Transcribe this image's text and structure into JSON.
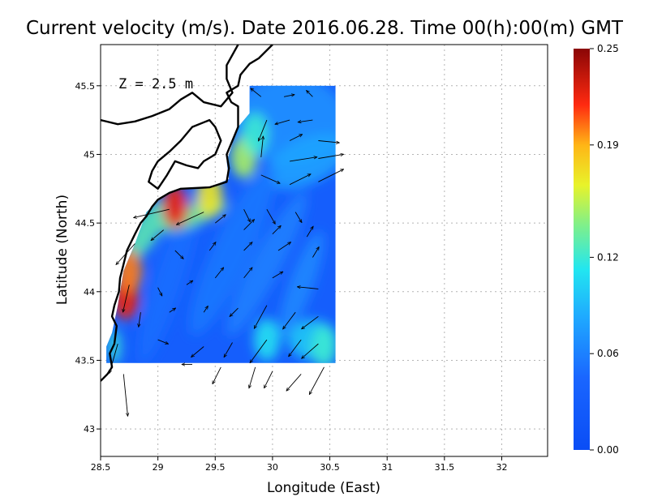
{
  "chart_data": {
    "type": "heatmap",
    "title": "Current velocity (m/s). Date 2016.06.28. Time 00(h):00(m) GMT",
    "xlabel": "Longitude (East)",
    "ylabel": "Latitude (North)",
    "annotation": "Z = 2.5 m",
    "xlim": [
      28.5,
      32.4
    ],
    "ylim": [
      42.8,
      45.8
    ],
    "x_ticks": [
      28.5,
      29,
      29.5,
      30,
      30.5,
      31,
      31.5,
      32
    ],
    "x_tick_labels": [
      "28.5",
      "29",
      "29.5",
      "30",
      "30.5",
      "31",
      "31.5",
      "32"
    ],
    "y_ticks": [
      43,
      43.5,
      44,
      44.5,
      45,
      45.5
    ],
    "y_tick_labels": [
      "43",
      "43.5",
      "44",
      "44.5",
      "45",
      "45.5"
    ],
    "grid": true,
    "colorbar": {
      "min": 0.0,
      "max": 0.25,
      "ticks": [
        0.0,
        0.06,
        0.12,
        0.19,
        0.25
      ],
      "tick_labels": [
        "0.00",
        "0.06",
        "0.12",
        "0.19",
        "0.25"
      ],
      "colormap": "jet"
    },
    "field_extent": {
      "lon": [
        28.55,
        30.55
      ],
      "lat": [
        43.48,
        45.5
      ]
    },
    "velocity_hotspots": [
      {
        "lon": 28.72,
        "lat": 43.95,
        "speed": 0.22
      },
      {
        "lon": 28.75,
        "lat": 44.15,
        "speed": 0.2
      },
      {
        "lon": 29.15,
        "lat": 44.62,
        "speed": 0.22
      },
      {
        "lon": 29.45,
        "lat": 44.7,
        "speed": 0.17
      },
      {
        "lon": 29.75,
        "lat": 44.98,
        "speed": 0.15
      },
      {
        "lon": 29.85,
        "lat": 45.15,
        "speed": 0.12
      },
      {
        "lon": 30.45,
        "lat": 43.6,
        "speed": 0.12
      },
      {
        "lon": 29.95,
        "lat": 43.65,
        "speed": 0.11
      }
    ],
    "vectors": [
      {
        "lon": 29.9,
        "lat": 45.42,
        "u": -0.05,
        "v": 0.04
      },
      {
        "lon": 30.1,
        "lat": 45.42,
        "u": 0.05,
        "v": 0.01
      },
      {
        "lon": 30.35,
        "lat": 45.42,
        "u": -0.03,
        "v": 0.03
      },
      {
        "lon": 29.95,
        "lat": 45.25,
        "u": -0.04,
        "v": -0.1
      },
      {
        "lon": 30.15,
        "lat": 45.25,
        "u": -0.07,
        "v": -0.02
      },
      {
        "lon": 30.35,
        "lat": 45.25,
        "u": -0.07,
        "v": -0.01
      },
      {
        "lon": 30.15,
        "lat": 45.1,
        "u": 0.06,
        "v": 0.03
      },
      {
        "lon": 30.4,
        "lat": 45.1,
        "u": 0.1,
        "v": -0.01
      },
      {
        "lon": 29.9,
        "lat": 44.98,
        "u": 0.01,
        "v": 0.1
      },
      {
        "lon": 30.15,
        "lat": 44.95,
        "u": 0.13,
        "v": 0.02
      },
      {
        "lon": 30.4,
        "lat": 44.97,
        "u": 0.12,
        "v": 0.02
      },
      {
        "lon": 29.9,
        "lat": 44.85,
        "u": 0.09,
        "v": -0.04
      },
      {
        "lon": 30.15,
        "lat": 44.78,
        "u": 0.1,
        "v": 0.05
      },
      {
        "lon": 30.4,
        "lat": 44.8,
        "u": 0.12,
        "v": 0.06
      },
      {
        "lon": 29.1,
        "lat": 44.6,
        "u": -0.17,
        "v": -0.04
      },
      {
        "lon": 29.4,
        "lat": 44.58,
        "u": -0.13,
        "v": -0.06
      },
      {
        "lon": 29.75,
        "lat": 44.6,
        "u": 0.03,
        "v": -0.06
      },
      {
        "lon": 29.95,
        "lat": 44.6,
        "u": 0.04,
        "v": -0.07
      },
      {
        "lon": 30.2,
        "lat": 44.58,
        "u": 0.03,
        "v": -0.05
      },
      {
        "lon": 28.8,
        "lat": 44.35,
        "u": -0.09,
        "v": -0.1
      },
      {
        "lon": 29.05,
        "lat": 44.45,
        "u": -0.06,
        "v": -0.05
      },
      {
        "lon": 29.5,
        "lat": 44.5,
        "u": 0.05,
        "v": 0.04
      },
      {
        "lon": 29.75,
        "lat": 44.45,
        "u": 0.05,
        "v": 0.05
      },
      {
        "lon": 30.0,
        "lat": 44.42,
        "u": 0.04,
        "v": 0.04
      },
      {
        "lon": 30.3,
        "lat": 44.4,
        "u": 0.03,
        "v": 0.05
      },
      {
        "lon": 29.15,
        "lat": 44.3,
        "u": 0.04,
        "v": -0.04
      },
      {
        "lon": 29.45,
        "lat": 44.3,
        "u": 0.03,
        "v": 0.04
      },
      {
        "lon": 29.75,
        "lat": 44.3,
        "u": 0.04,
        "v": 0.04
      },
      {
        "lon": 30.05,
        "lat": 44.3,
        "u": 0.06,
        "v": 0.04
      },
      {
        "lon": 30.35,
        "lat": 44.25,
        "u": 0.03,
        "v": 0.05
      },
      {
        "lon": 28.75,
        "lat": 44.05,
        "u": -0.03,
        "v": -0.13
      },
      {
        "lon": 29.0,
        "lat": 44.03,
        "u": 0.02,
        "v": -0.04
      },
      {
        "lon": 29.25,
        "lat": 44.05,
        "u": 0.03,
        "v": 0.02
      },
      {
        "lon": 29.5,
        "lat": 44.1,
        "u": 0.04,
        "v": 0.05
      },
      {
        "lon": 29.75,
        "lat": 44.1,
        "u": 0.04,
        "v": 0.05
      },
      {
        "lon": 30.0,
        "lat": 44.1,
        "u": 0.05,
        "v": 0.03
      },
      {
        "lon": 30.4,
        "lat": 44.02,
        "u": -0.1,
        "v": 0.01
      },
      {
        "lon": 28.85,
        "lat": 43.85,
        "u": -0.01,
        "v": -0.07
      },
      {
        "lon": 29.1,
        "lat": 43.85,
        "u": 0.03,
        "v": 0.02
      },
      {
        "lon": 29.4,
        "lat": 43.85,
        "u": 0.02,
        "v": 0.03
      },
      {
        "lon": 29.7,
        "lat": 43.88,
        "u": -0.04,
        "v": -0.04
      },
      {
        "lon": 29.95,
        "lat": 43.9,
        "u": -0.06,
        "v": -0.11
      },
      {
        "lon": 30.2,
        "lat": 43.85,
        "u": -0.06,
        "v": -0.08
      },
      {
        "lon": 30.4,
        "lat": 43.82,
        "u": -0.08,
        "v": -0.06
      },
      {
        "lon": 28.65,
        "lat": 43.62,
        "u": -0.04,
        "v": -0.14
      },
      {
        "lon": 29.0,
        "lat": 43.65,
        "u": 0.05,
        "v": -0.02
      },
      {
        "lon": 29.4,
        "lat": 43.6,
        "u": -0.06,
        "v": -0.05
      },
      {
        "lon": 29.65,
        "lat": 43.63,
        "u": -0.04,
        "v": -0.07
      },
      {
        "lon": 29.95,
        "lat": 43.65,
        "u": -0.08,
        "v": -0.11
      },
      {
        "lon": 30.25,
        "lat": 43.65,
        "u": -0.06,
        "v": -0.08
      },
      {
        "lon": 30.4,
        "lat": 43.62,
        "u": -0.08,
        "v": -0.07
      },
      {
        "lon": 28.7,
        "lat": 43.4,
        "u": 0.02,
        "v": -0.2
      },
      {
        "lon": 29.3,
        "lat": 43.47,
        "u": -0.05,
        "v": 0.0
      },
      {
        "lon": 29.55,
        "lat": 43.45,
        "u": -0.04,
        "v": -0.08
      },
      {
        "lon": 29.85,
        "lat": 43.45,
        "u": -0.03,
        "v": -0.1
      },
      {
        "lon": 30.0,
        "lat": 43.42,
        "u": -0.04,
        "v": -0.08
      },
      {
        "lon": 30.25,
        "lat": 43.4,
        "u": -0.07,
        "v": -0.08
      },
      {
        "lon": 30.45,
        "lat": 43.45,
        "u": -0.07,
        "v": -0.13
      }
    ]
  }
}
